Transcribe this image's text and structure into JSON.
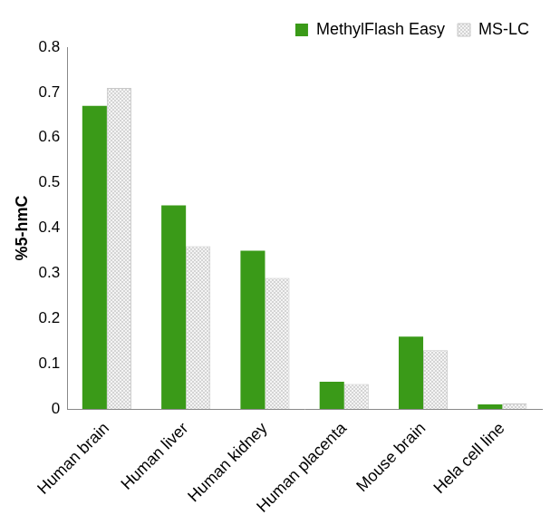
{
  "chart_data": {
    "type": "bar",
    "y_label": "%5-hmC",
    "categories": [
      "Human brain",
      "Human liver",
      "Human kidney",
      "Human placenta",
      "Mouse brain",
      "Hela cell line"
    ],
    "series": [
      {
        "name": "MethylFlash Easy",
        "color": "#3a9a18",
        "values": [
          0.67,
          0.45,
          0.35,
          0.06,
          0.16,
          0.01
        ]
      },
      {
        "name": "MS-LC",
        "color": "#d4d4d4",
        "values": [
          0.71,
          0.36,
          0.29,
          0.055,
          0.13,
          0.012
        ]
      }
    ],
    "ylim": [
      0,
      0.8
    ],
    "yticks": [
      0,
      0.1,
      0.2,
      0.3,
      0.4,
      0.5,
      0.6,
      0.7,
      0.8
    ],
    "grid": false,
    "legend": "upper right"
  }
}
